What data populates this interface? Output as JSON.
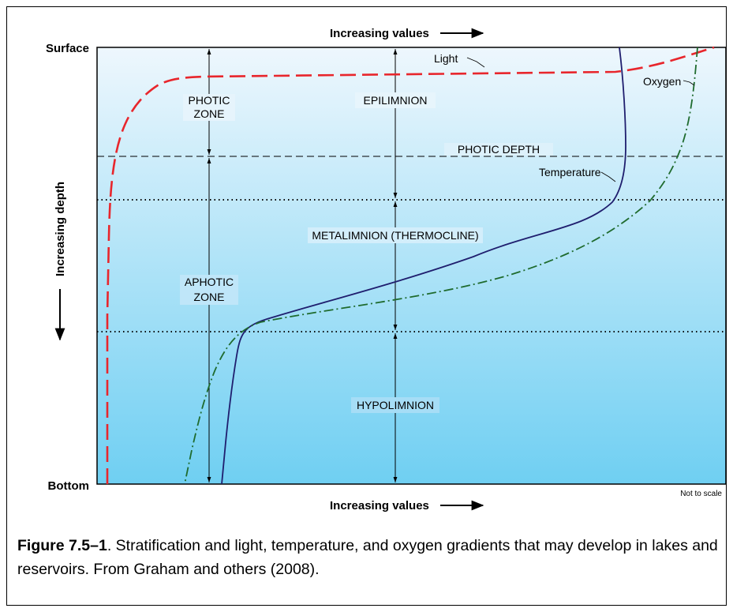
{
  "diagram": {
    "top_axis_label": "Increasing values",
    "bottom_axis_label": "Increasing values",
    "surface_label": "Surface",
    "bottom_label": "Bottom",
    "depth_axis_label": "Increasing depth",
    "photic_zone": [
      "PHOTIC",
      "ZONE"
    ],
    "aphotic_zone": [
      "APHOTIC",
      "ZONE"
    ],
    "epilimnion": "EPILIMNION",
    "photic_depth": "PHOTIC DEPTH",
    "metalimnion": "METALIMNION (THERMOCLINE)",
    "hypolimnion": "HYPOLIMNION",
    "light_label": "Light",
    "oxygen_label": "Oxygen",
    "temperature_label": "Temperature",
    "scale_note": "Not to scale",
    "colors": {
      "light": "#e8262c",
      "temperature": "#1f1e6e",
      "oxygen": "#1f6b2e",
      "water_top": "#eef7fd",
      "water_bottom": "#6fcff2"
    }
  },
  "caption": {
    "figure_number": "Figure 7.5–1",
    "text": ". Stratification and light, temperature, and oxygen gradients that may develop in lakes and reservoirs. From Graham and others (2008)."
  }
}
